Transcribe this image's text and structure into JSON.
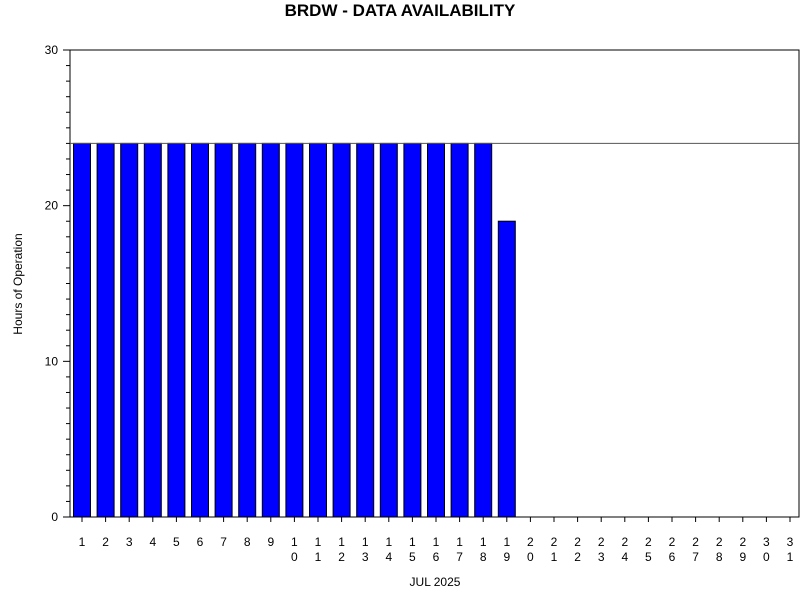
{
  "chart_data": {
    "type": "bar",
    "title": "BRDW - DATA AVAILABILITY",
    "xlabel": "JUL 2025",
    "ylabel": "Hours of Operation",
    "ylim": [
      0,
      30
    ],
    "yticks": [
      0,
      10,
      20,
      30
    ],
    "minor_ytick_step": 1,
    "reference_line": 24,
    "categories": [
      "1",
      "2",
      "3",
      "4",
      "5",
      "6",
      "7",
      "8",
      "9",
      "10",
      "11",
      "12",
      "13",
      "14",
      "15",
      "16",
      "17",
      "18",
      "19",
      "20",
      "21",
      "22",
      "23",
      "24",
      "25",
      "26",
      "27",
      "28",
      "29",
      "30",
      "31"
    ],
    "values": [
      24,
      24,
      24,
      24,
      24,
      24,
      24,
      24,
      24,
      24,
      24,
      24,
      24,
      24,
      24,
      24,
      24,
      24,
      19,
      0,
      0,
      0,
      0,
      0,
      0,
      0,
      0,
      0,
      0,
      0,
      0
    ],
    "bar_color": "#0000ff",
    "grid": false,
    "legend": "none"
  }
}
